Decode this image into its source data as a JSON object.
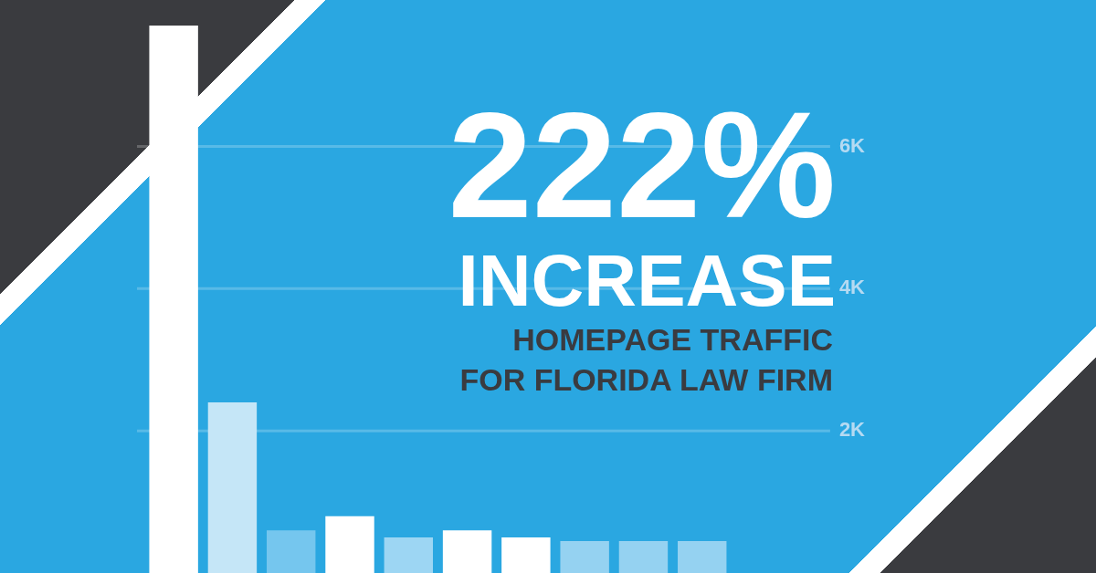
{
  "chart_data": {
    "type": "bar",
    "title": "222% INCREASE",
    "subtitle": "HOMEPAGE TRAFFIC FOR FLORIDA LAW FIRM",
    "categories": [
      null,
      null,
      null,
      null,
      null,
      null,
      null,
      null,
      null,
      null
    ],
    "values": [
      7700,
      2400,
      600,
      800,
      500,
      600,
      500,
      450,
      450,
      450
    ],
    "colors": [
      "#ffffff",
      "#c5e6f7",
      "#75c6ee",
      "#ffffff",
      "#9dd6f3",
      "#ffffff",
      "#ffffff",
      "#95d2f1",
      "#95d2f1",
      "#95d2f1"
    ],
    "ylim": [
      0,
      7700
    ],
    "yticks": [
      {
        "value": 2000,
        "label": "2K"
      },
      {
        "value": 4000,
        "label": "4K"
      },
      {
        "value": 6000,
        "label": "6K"
      }
    ],
    "grid": "y",
    "legend": false,
    "tick_labels": "y"
  }
}
